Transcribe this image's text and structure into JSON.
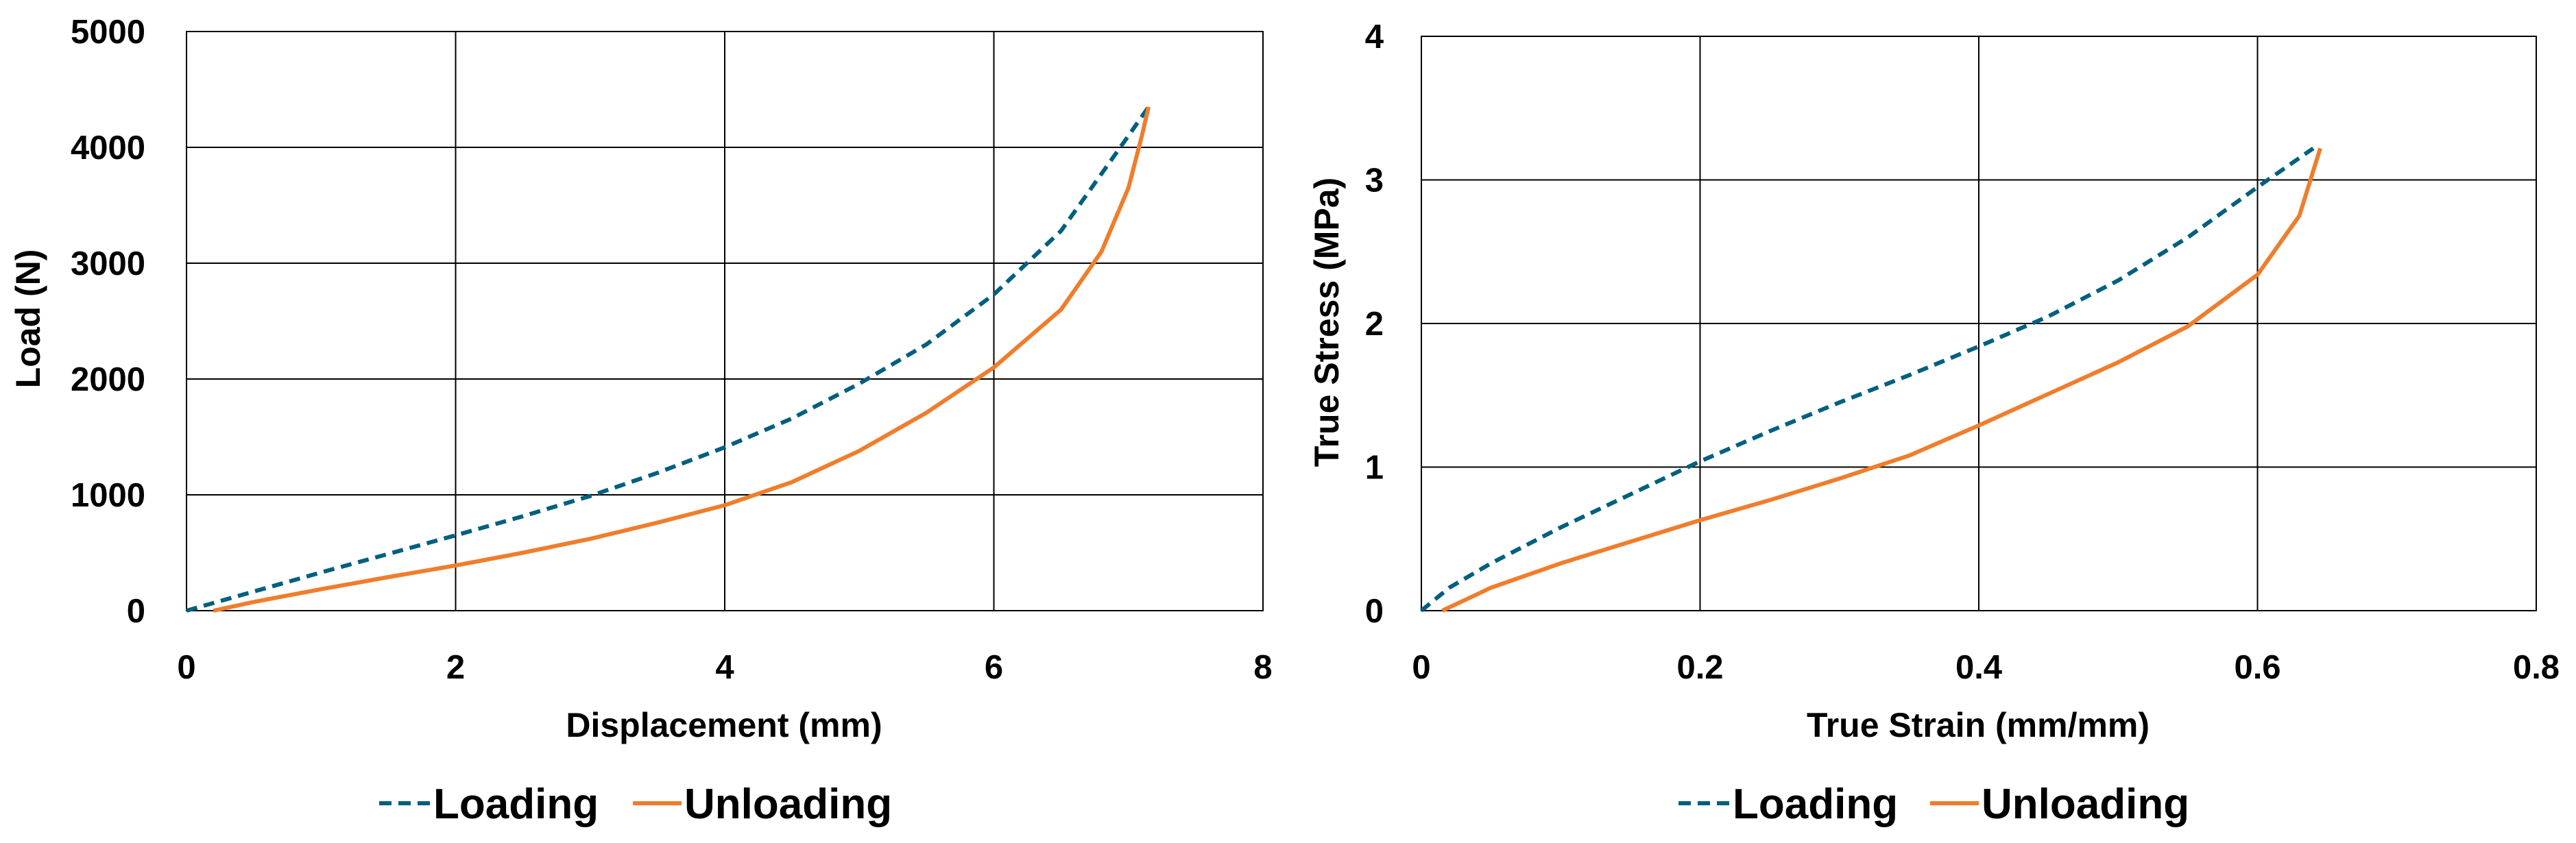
{
  "chart_data": [
    {
      "type": "line",
      "title": "",
      "xlabel": "Displacement (mm)",
      "ylabel": "Load (N)",
      "xlim": [
        0,
        8
      ],
      "ylim": [
        0,
        5000
      ],
      "xticks": [
        "0",
        "2",
        "4",
        "6",
        "8"
      ],
      "yticks": [
        "0",
        "1000",
        "2000",
        "3000",
        "4000",
        "5000"
      ],
      "xtick_values": [
        0,
        2,
        4,
        6,
        8
      ],
      "ytick_values": [
        0,
        1000,
        2000,
        3000,
        4000,
        5000
      ],
      "grid": true,
      "legend_position": "bottom",
      "series": [
        {
          "name": "Loading",
          "color": "#005f7f",
          "style": "dashed",
          "x": [
            0,
            0.5,
            1,
            1.5,
            2,
            2.5,
            3,
            3.5,
            4,
            4.5,
            5,
            5.5,
            6,
            6.5,
            7,
            7.15
          ],
          "y": [
            0,
            165,
            330,
            490,
            650,
            815,
            990,
            1190,
            1410,
            1660,
            1960,
            2300,
            2730,
            3280,
            4100,
            4350
          ]
        },
        {
          "name": "Unloading",
          "color": "#f07d2c",
          "style": "solid",
          "x": [
            0.2,
            0.5,
            1,
            1.5,
            2,
            2.5,
            3,
            3.5,
            4,
            4.5,
            5,
            5.5,
            6,
            6.5,
            6.8,
            7.0,
            7.1,
            7.15
          ],
          "y": [
            0,
            75,
            185,
            290,
            390,
            500,
            620,
            760,
            910,
            1110,
            1380,
            1710,
            2100,
            2600,
            3100,
            3650,
            4100,
            4350
          ]
        }
      ]
    },
    {
      "type": "line",
      "title": "",
      "xlabel": "True Strain (mm/mm)",
      "ylabel": "True Stress (MPa)",
      "xlim": [
        0,
        0.8
      ],
      "ylim": [
        0,
        4
      ],
      "xticks": [
        "0",
        "0.2",
        "0.4",
        "0.6",
        "0.8"
      ],
      "yticks": [
        "0",
        "1",
        "2",
        "3",
        "4"
      ],
      "xtick_values": [
        0,
        0.2,
        0.4,
        0.6,
        0.8
      ],
      "ytick_values": [
        0,
        1,
        2,
        3,
        4
      ],
      "grid": true,
      "legend_position": "bottom",
      "series": [
        {
          "name": "Loading",
          "color": "#005f7f",
          "style": "dashed",
          "x": [
            0,
            0.02,
            0.05,
            0.1,
            0.15,
            0.2,
            0.25,
            0.3,
            0.35,
            0.4,
            0.45,
            0.5,
            0.55,
            0.6,
            0.64
          ],
          "y": [
            0,
            0.16,
            0.33,
            0.58,
            0.81,
            1.04,
            1.25,
            1.45,
            1.64,
            1.84,
            2.05,
            2.3,
            2.6,
            2.95,
            3.22
          ]
        },
        {
          "name": "Unloading",
          "color": "#f07d2c",
          "style": "solid",
          "x": [
            0.015,
            0.05,
            0.1,
            0.15,
            0.2,
            0.25,
            0.3,
            0.35,
            0.4,
            0.45,
            0.5,
            0.55,
            0.6,
            0.63,
            0.645
          ],
          "y": [
            0,
            0.16,
            0.33,
            0.48,
            0.63,
            0.77,
            0.92,
            1.08,
            1.29,
            1.51,
            1.73,
            1.98,
            2.34,
            2.75,
            3.22
          ]
        }
      ]
    }
  ]
}
